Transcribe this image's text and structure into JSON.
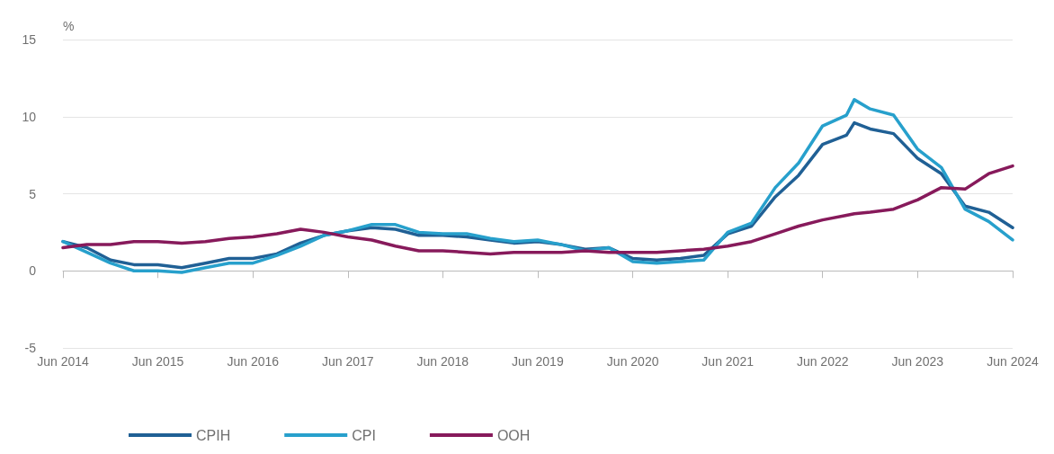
{
  "chart_data": {
    "type": "line",
    "ylabel": "%",
    "x": [
      "2014-06",
      "2014-09",
      "2014-12",
      "2015-03",
      "2015-06",
      "2015-09",
      "2015-12",
      "2016-03",
      "2016-06",
      "2016-09",
      "2016-12",
      "2017-03",
      "2017-06",
      "2017-09",
      "2017-12",
      "2018-03",
      "2018-06",
      "2018-09",
      "2018-12",
      "2019-03",
      "2019-06",
      "2019-09",
      "2019-12",
      "2020-03",
      "2020-06",
      "2020-09",
      "2020-12",
      "2021-03",
      "2021-06",
      "2021-09",
      "2021-12",
      "2022-03",
      "2022-06",
      "2022-09",
      "2022-10",
      "2022-12",
      "2023-03",
      "2023-06",
      "2023-09",
      "2023-12",
      "2024-03",
      "2024-06"
    ],
    "series": [
      {
        "name": "CPIH",
        "color": "#206095",
        "values": [
          1.9,
          1.5,
          0.7,
          0.4,
          0.4,
          0.2,
          0.5,
          0.8,
          0.8,
          1.1,
          1.8,
          2.3,
          2.6,
          2.8,
          2.7,
          2.3,
          2.3,
          2.2,
          2.0,
          1.8,
          1.9,
          1.7,
          1.4,
          1.5,
          0.8,
          0.7,
          0.8,
          1.0,
          2.4,
          2.9,
          4.8,
          6.2,
          8.2,
          8.8,
          9.6,
          9.2,
          8.9,
          7.3,
          6.3,
          4.2,
          3.8,
          2.8
        ]
      },
      {
        "name": "CPI",
        "color": "#27a0cc",
        "values": [
          1.9,
          1.2,
          0.5,
          0.0,
          0.0,
          -0.1,
          0.2,
          0.5,
          0.5,
          1.0,
          1.6,
          2.3,
          2.6,
          3.0,
          3.0,
          2.5,
          2.4,
          2.4,
          2.1,
          1.9,
          2.0,
          1.7,
          1.3,
          1.5,
          0.6,
          0.5,
          0.6,
          0.7,
          2.5,
          3.1,
          5.4,
          7.0,
          9.4,
          10.1,
          11.1,
          10.5,
          10.1,
          7.9,
          6.7,
          4.0,
          3.2,
          2.0
        ]
      },
      {
        "name": "OOH",
        "color": "#871a5b",
        "values": [
          1.5,
          1.7,
          1.7,
          1.9,
          1.9,
          1.8,
          1.9,
          2.1,
          2.2,
          2.4,
          2.7,
          2.5,
          2.2,
          2.0,
          1.6,
          1.3,
          1.3,
          1.2,
          1.1,
          1.2,
          1.2,
          1.2,
          1.3,
          1.2,
          1.2,
          1.2,
          1.3,
          1.4,
          1.6,
          1.9,
          2.4,
          2.9,
          3.3,
          3.6,
          3.7,
          3.8,
          4.0,
          4.6,
          5.4,
          5.3,
          6.3,
          6.8
        ]
      }
    ],
    "xlim": [
      "2014-06",
      "2024-06"
    ],
    "xticks": [
      {
        "value": "2014-06",
        "label": "Jun 2014"
      },
      {
        "value": "2015-06",
        "label": "Jun 2015"
      },
      {
        "value": "2016-06",
        "label": "Jun 2016"
      },
      {
        "value": "2017-06",
        "label": "Jun 2017"
      },
      {
        "value": "2018-06",
        "label": "Jun 2018"
      },
      {
        "value": "2019-06",
        "label": "Jun 2019"
      },
      {
        "value": "2020-06",
        "label": "Jun 2020"
      },
      {
        "value": "2021-06",
        "label": "Jun 2021"
      },
      {
        "value": "2022-06",
        "label": "Jun 2022"
      },
      {
        "value": "2023-06",
        "label": "Jun 2023"
      },
      {
        "value": "2024-06",
        "label": "Jun 2024"
      }
    ],
    "ylim": [
      -5,
      15
    ],
    "yticks": [
      -5,
      0,
      5,
      10,
      15
    ],
    "grid": "y",
    "legend": "bottom",
    "marker": "none",
    "line_style": "solid"
  }
}
